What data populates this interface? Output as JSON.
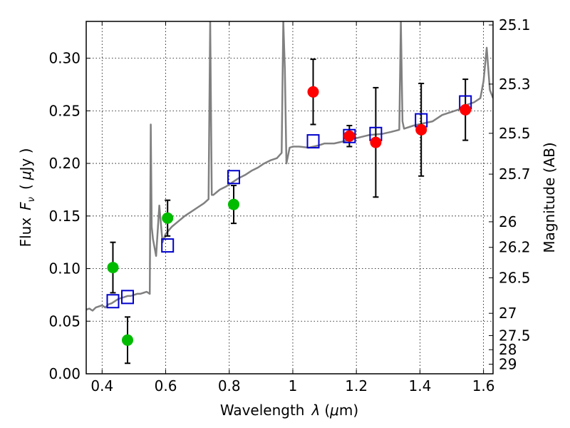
{
  "chart_data": {
    "type": "scatter",
    "title": "",
    "xlabel_text": "Wavelength",
    "xlabel_symbol": "λ",
    "xlabel_unit_open": "(",
    "xlabel_unit_mu": "μ",
    "xlabel_unit_rest": "m)",
    "ylabel_text": "Flux",
    "ylabel_symbol": "F",
    "ylabel_sub": "ν",
    "ylabel_unit_open": "(",
    "ylabel_unit_mu": "μ",
    "ylabel_unit_rest": "Jy )",
    "y2label": "Magnitude (AB)",
    "xlim": [
      0.35,
      1.63
    ],
    "ylim": [
      0.0,
      0.335
    ],
    "grid": true,
    "x_ticks": [
      {
        "value": 0.4,
        "label": "0.4"
      },
      {
        "value": 0.6,
        "label": "0.6"
      },
      {
        "value": 0.8,
        "label": "0.8"
      },
      {
        "value": 1.0,
        "label": "1"
      },
      {
        "value": 1.2,
        "label": "1.2"
      },
      {
        "value": 1.4,
        "label": "1.4"
      },
      {
        "value": 1.6,
        "label": "1.6"
      }
    ],
    "y_ticks": [
      {
        "value": 0.0,
        "label": "0.00"
      },
      {
        "value": 0.05,
        "label": "0.05"
      },
      {
        "value": 0.1,
        "label": "0.10"
      },
      {
        "value": 0.15,
        "label": "0.15"
      },
      {
        "value": 0.2,
        "label": "0.20"
      },
      {
        "value": 0.25,
        "label": "0.25"
      },
      {
        "value": 0.3,
        "label": "0.30"
      }
    ],
    "y2_ticks": [
      {
        "flux": 0.3316,
        "label": "25.1"
      },
      {
        "flux": 0.2754,
        "label": "25.3"
      },
      {
        "flux": 0.2286,
        "label": "25.5"
      },
      {
        "flux": 0.1898,
        "label": "25.7"
      },
      {
        "flux": 0.1445,
        "label": "26"
      },
      {
        "flux": 0.1202,
        "label": "26.2"
      },
      {
        "flux": 0.0912,
        "label": "26.5"
      },
      {
        "flux": 0.0575,
        "label": "27"
      },
      {
        "flux": 0.0363,
        "label": "27.5"
      },
      {
        "flux": 0.0229,
        "label": "28"
      },
      {
        "flux": 0.0091,
        "label": "29"
      }
    ],
    "series": [
      {
        "name": "model-spectrum",
        "kind": "line",
        "color": "#808080",
        "x": [
          0.35,
          0.36,
          0.37,
          0.38,
          0.39,
          0.4,
          0.41,
          0.42,
          0.43,
          0.44,
          0.45,
          0.46,
          0.47,
          0.48,
          0.49,
          0.5,
          0.51,
          0.52,
          0.53,
          0.54,
          0.55,
          0.553,
          0.556,
          0.56,
          0.57,
          0.58,
          0.59,
          0.6,
          0.62,
          0.64,
          0.66,
          0.68,
          0.7,
          0.72,
          0.735,
          0.74,
          0.745,
          0.75,
          0.77,
          0.79,
          0.81,
          0.83,
          0.85,
          0.87,
          0.89,
          0.91,
          0.93,
          0.95,
          0.965,
          0.97,
          0.975,
          0.98,
          0.99,
          1.0,
          1.02,
          1.05,
          1.08,
          1.1,
          1.13,
          1.16,
          1.2,
          1.24,
          1.28,
          1.31,
          1.335,
          1.34,
          1.345,
          1.35,
          1.38,
          1.41,
          1.44,
          1.47,
          1.5,
          1.53,
          1.55,
          1.57,
          1.59,
          1.6,
          1.61,
          1.62,
          1.63
        ],
        "y": [
          0.061,
          0.062,
          0.06,
          0.063,
          0.064,
          0.065,
          0.063,
          0.066,
          0.067,
          0.069,
          0.071,
          0.072,
          0.073,
          0.074,
          0.074,
          0.075,
          0.076,
          0.076,
          0.077,
          0.078,
          0.076,
          0.237,
          0.14,
          0.128,
          0.112,
          0.16,
          0.125,
          0.133,
          0.14,
          0.145,
          0.15,
          0.154,
          0.158,
          0.162,
          0.166,
          0.335,
          0.17,
          0.17,
          0.175,
          0.178,
          0.182,
          0.186,
          0.189,
          0.193,
          0.196,
          0.2,
          0.203,
          0.205,
          0.21,
          0.335,
          0.29,
          0.2,
          0.215,
          0.216,
          0.216,
          0.215,
          0.217,
          0.219,
          0.219,
          0.221,
          0.224,
          0.227,
          0.228,
          0.23,
          0.232,
          0.335,
          0.24,
          0.233,
          0.236,
          0.238,
          0.24,
          0.246,
          0.249,
          0.252,
          0.256,
          0.258,
          0.262,
          0.278,
          0.31,
          0.27,
          0.262
        ]
      },
      {
        "name": "model-photometry",
        "kind": "marker",
        "marker": "square",
        "color": "#0000cc",
        "x": [
          0.434,
          0.48,
          0.606,
          0.814,
          1.064,
          1.178,
          1.261,
          1.404,
          1.543
        ],
        "y": [
          0.069,
          0.073,
          0.122,
          0.187,
          0.221,
          0.226,
          0.228,
          0.241,
          0.258
        ]
      },
      {
        "name": "observed-green",
        "kind": "marker",
        "marker": "circle",
        "color": "#00bb00",
        "x": [
          0.434,
          0.48,
          0.606,
          0.814
        ],
        "y": [
          0.101,
          0.032,
          0.148,
          0.161
        ],
        "yerr": [
          0.024,
          0.022,
          0.017,
          0.018
        ]
      },
      {
        "name": "observed-red",
        "kind": "marker",
        "marker": "circle",
        "color": "#ff0000",
        "x": [
          1.064,
          1.178,
          1.261,
          1.404,
          1.543
        ],
        "y": [
          0.268,
          0.226,
          0.22,
          0.232,
          0.251
        ],
        "yerr": [
          0.031,
          0.01,
          0.052,
          0.044,
          0.029
        ]
      }
    ]
  }
}
